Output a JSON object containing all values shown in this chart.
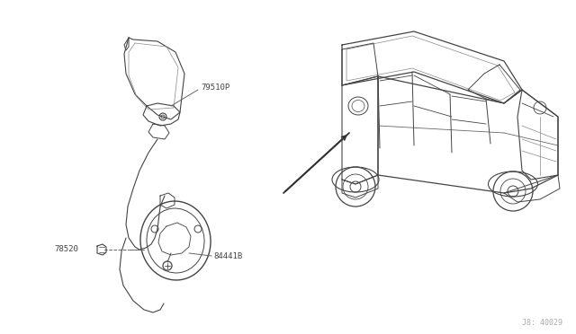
{
  "bg_color": "#ffffff",
  "line_color": "#444444",
  "text_color": "#444444",
  "label_79510P": "79510P",
  "label_78520": "78520",
  "label_84441B": "84441B",
  "label_part_num": "J8: 40029",
  "fig_width": 6.4,
  "fig_height": 3.72,
  "dpi": 100
}
